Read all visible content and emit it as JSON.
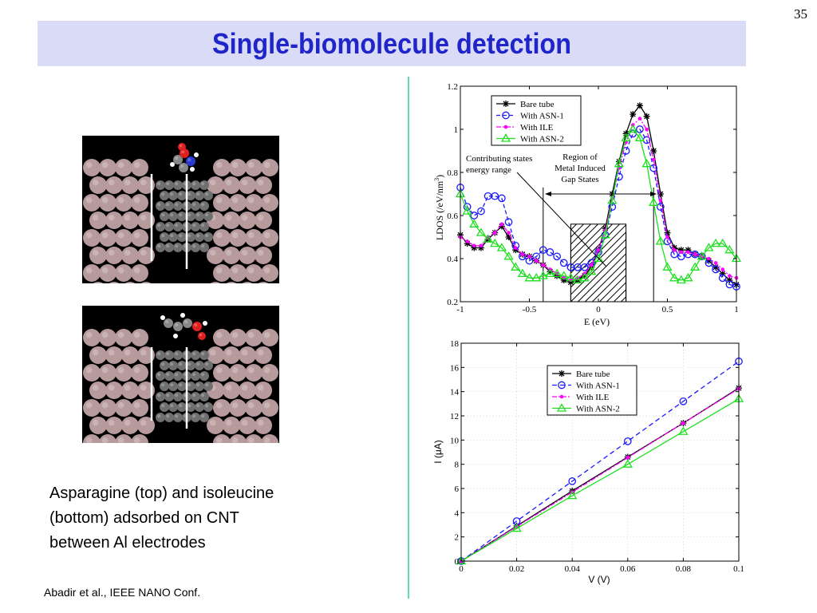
{
  "slide_number": "35",
  "title": "Single-biomolecule detection",
  "caption": "Asparagine (top) and isoleucine\n(bottom) adsorbed on CNT\nbetween Al electrodes",
  "citation": "Abadir et al., IEEE NANO Conf.",
  "chart_data": [
    {
      "type": "line",
      "xlabel": "E (eV)",
      "ylabel": "LDOS (/eV/nm",
      "ylabel_sup": "3",
      "ylabel_end": ")",
      "xlim": [
        -1,
        1
      ],
      "ylim": [
        0.2,
        1.2
      ],
      "xticks": [
        -1,
        -0.5,
        0,
        0.5,
        1
      ],
      "xtick_labels": [
        "-1",
        "-0.5",
        "0",
        "0.5",
        "1"
      ],
      "yticks": [
        0.2,
        0.4,
        0.6,
        0.8,
        1.0,
        1.2
      ],
      "ytick_labels": [
        "0.2",
        "0.4",
        "0.6",
        "0.8",
        "1",
        "1.2"
      ],
      "legend_position": "top-left",
      "annotations": {
        "contributing_line1": "Contributing states",
        "contributing_line2": "energy range",
        "region_line1": "Region of",
        "region_line2": "Metal Induced",
        "region_line3": "Gap States"
      },
      "vertical_lines_x": [
        -0.4,
        -0.2,
        0.2,
        0.4
      ],
      "hatched_region": [
        -0.2,
        0.2
      ],
      "series": [
        {
          "name": "Bare tube",
          "color": "#000000",
          "marker": "star",
          "dash": "",
          "x": [
            -1,
            -0.95,
            -0.9,
            -0.85,
            -0.8,
            -0.75,
            -0.7,
            -0.65,
            -0.6,
            -0.55,
            -0.5,
            -0.45,
            -0.4,
            -0.35,
            -0.3,
            -0.25,
            -0.2,
            -0.15,
            -0.1,
            -0.05,
            0,
            0.05,
            0.1,
            0.15,
            0.2,
            0.25,
            0.3,
            0.35,
            0.4,
            0.45,
            0.5,
            0.55,
            0.6,
            0.65,
            0.7,
            0.75,
            0.8,
            0.85,
            0.9,
            0.95,
            1.0
          ],
          "y": [
            0.51,
            0.47,
            0.45,
            0.45,
            0.49,
            0.52,
            0.55,
            0.5,
            0.44,
            0.42,
            0.41,
            0.39,
            0.37,
            0.34,
            0.32,
            0.3,
            0.29,
            0.3,
            0.32,
            0.36,
            0.44,
            0.54,
            0.7,
            0.85,
            0.98,
            1.07,
            1.11,
            1.06,
            0.9,
            0.7,
            0.52,
            0.45,
            0.44,
            0.44,
            0.42,
            0.41,
            0.39,
            0.36,
            0.33,
            0.3,
            0.28
          ]
        },
        {
          "name": "With ASN-1",
          "color": "#1a1aff",
          "marker": "circle",
          "dash": "5,3",
          "x": [
            -1,
            -0.95,
            -0.9,
            -0.85,
            -0.8,
            -0.75,
            -0.7,
            -0.65,
            -0.6,
            -0.55,
            -0.5,
            -0.45,
            -0.4,
            -0.35,
            -0.3,
            -0.25,
            -0.2,
            -0.15,
            -0.1,
            -0.05,
            0,
            0.05,
            0.1,
            0.15,
            0.2,
            0.25,
            0.3,
            0.35,
            0.4,
            0.45,
            0.5,
            0.55,
            0.6,
            0.65,
            0.7,
            0.75,
            0.8,
            0.85,
            0.9,
            0.95,
            1.0
          ],
          "y": [
            0.73,
            0.64,
            0.6,
            0.62,
            0.69,
            0.69,
            0.68,
            0.57,
            0.46,
            0.41,
            0.39,
            0.41,
            0.44,
            0.43,
            0.41,
            0.38,
            0.36,
            0.36,
            0.36,
            0.38,
            0.43,
            0.51,
            0.64,
            0.78,
            0.9,
            0.98,
            1.0,
            0.95,
            0.82,
            0.64,
            0.48,
            0.42,
            0.41,
            0.42,
            0.42,
            0.41,
            0.38,
            0.35,
            0.31,
            0.28,
            0.27
          ]
        },
        {
          "name": "With ILE",
          "color": "#ff00ff",
          "marker": "dot",
          "dash": "6,2,2,2",
          "x": [
            -1,
            -0.95,
            -0.9,
            -0.85,
            -0.8,
            -0.75,
            -0.7,
            -0.65,
            -0.6,
            -0.55,
            -0.5,
            -0.45,
            -0.4,
            -0.35,
            -0.3,
            -0.25,
            -0.2,
            -0.15,
            -0.1,
            -0.05,
            0,
            0.05,
            0.1,
            0.15,
            0.2,
            0.25,
            0.3,
            0.35,
            0.4,
            0.45,
            0.5,
            0.55,
            0.6,
            0.65,
            0.7,
            0.75,
            0.8,
            0.85,
            0.9,
            0.95,
            1.0
          ],
          "y": [
            0.5,
            0.48,
            0.46,
            0.46,
            0.5,
            0.52,
            0.56,
            0.52,
            0.45,
            0.42,
            0.41,
            0.39,
            0.37,
            0.35,
            0.33,
            0.31,
            0.3,
            0.31,
            0.33,
            0.37,
            0.44,
            0.53,
            0.68,
            0.82,
            0.94,
            1.02,
            1.05,
            1.0,
            0.86,
            0.67,
            0.5,
            0.44,
            0.43,
            0.43,
            0.42,
            0.41,
            0.4,
            0.38,
            0.35,
            0.32,
            0.31
          ]
        },
        {
          "name": "With ASN-2",
          "color": "#1ee01e",
          "marker": "triangle",
          "dash": "",
          "x": [
            -1,
            -0.95,
            -0.9,
            -0.85,
            -0.8,
            -0.75,
            -0.7,
            -0.65,
            -0.6,
            -0.55,
            -0.5,
            -0.45,
            -0.4,
            -0.35,
            -0.3,
            -0.25,
            -0.2,
            -0.15,
            -0.1,
            -0.05,
            0,
            0.05,
            0.1,
            0.15,
            0.2,
            0.25,
            0.3,
            0.35,
            0.4,
            0.45,
            0.5,
            0.55,
            0.6,
            0.65,
            0.7,
            0.75,
            0.8,
            0.85,
            0.9,
            0.95,
            1.0
          ],
          "y": [
            0.7,
            0.62,
            0.56,
            0.52,
            0.49,
            0.47,
            0.45,
            0.41,
            0.36,
            0.33,
            0.31,
            0.31,
            0.32,
            0.33,
            0.33,
            0.32,
            0.31,
            0.3,
            0.31,
            0.34,
            0.4,
            0.51,
            0.67,
            0.84,
            0.96,
            1.0,
            0.96,
            0.84,
            0.66,
            0.48,
            0.36,
            0.31,
            0.3,
            0.31,
            0.36,
            0.41,
            0.45,
            0.47,
            0.47,
            0.44,
            0.4
          ]
        }
      ]
    },
    {
      "type": "line",
      "xlabel": "V (V)",
      "ylabel": "I (μA)",
      "xlim": [
        0,
        0.1
      ],
      "ylim": [
        0,
        18
      ],
      "xticks": [
        0,
        0.02,
        0.04,
        0.06,
        0.08,
        0.1
      ],
      "xtick_labels": [
        "0",
        "0.02",
        "0.04",
        "0.06",
        "0.08",
        "0.1"
      ],
      "yticks": [
        0,
        2,
        4,
        6,
        8,
        10,
        12,
        14,
        16,
        18
      ],
      "ytick_labels": [
        "0",
        "2",
        "4",
        "6",
        "8",
        "10",
        "12",
        "14",
        "16",
        "18"
      ],
      "grid": true,
      "legend_position": "center",
      "series": [
        {
          "name": "Bare tube",
          "color": "#000000",
          "marker": "star",
          "dash": "",
          "x": [
            0,
            0.02,
            0.04,
            0.06,
            0.08,
            0.1
          ],
          "y": [
            0,
            2.9,
            5.8,
            8.6,
            11.4,
            14.3
          ]
        },
        {
          "name": "With ASN-1",
          "color": "#1a1aff",
          "marker": "circle",
          "dash": "6,4",
          "x": [
            0,
            0.02,
            0.04,
            0.06,
            0.08,
            0.1
          ],
          "y": [
            0,
            3.3,
            6.6,
            9.9,
            13.2,
            16.5
          ]
        },
        {
          "name": "With ILE",
          "color": "#ff00ff",
          "marker": "dot",
          "dash": "6,2,2,2",
          "x": [
            0,
            0.02,
            0.04,
            0.06,
            0.08,
            0.1
          ],
          "y": [
            0,
            2.85,
            5.7,
            8.55,
            11.4,
            14.25
          ]
        },
        {
          "name": "With ASN-2",
          "color": "#1ee01e",
          "marker": "triangle",
          "dash": "",
          "x": [
            0,
            0.02,
            0.04,
            0.06,
            0.08,
            0.1
          ],
          "y": [
            0,
            2.7,
            5.4,
            8.0,
            10.7,
            13.4
          ]
        }
      ]
    }
  ]
}
